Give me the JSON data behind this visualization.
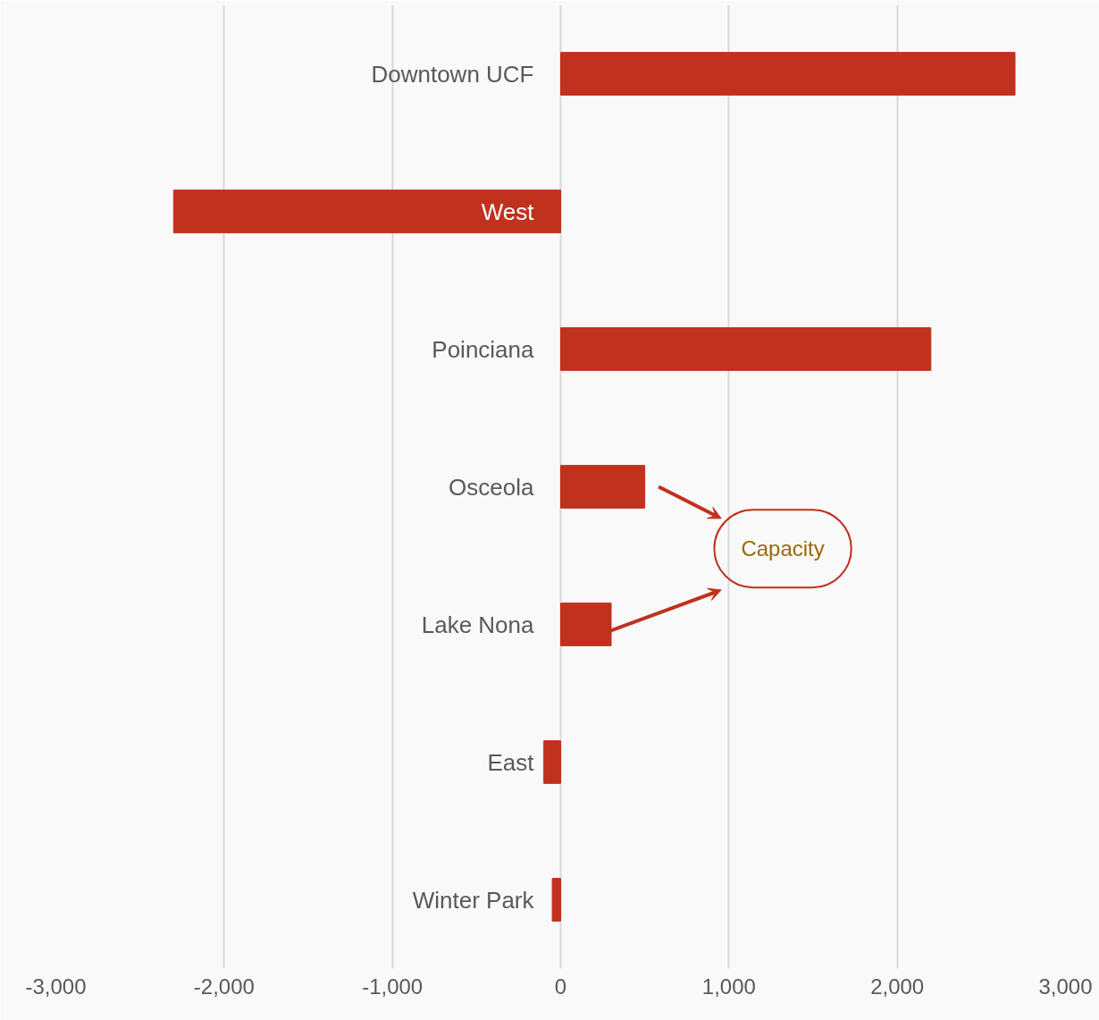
{
  "chart_data": {
    "type": "bar",
    "orientation": "horizontal",
    "categories": [
      "Downtown UCF",
      "West",
      "Poinciana",
      "Osceola",
      "Lake Nona",
      "East",
      "Winter Park"
    ],
    "values": [
      2700,
      -2300,
      2200,
      500,
      300,
      -100,
      -50
    ],
    "color": "#c0311e",
    "xlim": [
      -3000,
      3000
    ],
    "xticks": [
      {
        "value": -3000,
        "label": "-3,000"
      },
      {
        "value": -2000,
        "label": "-2,000"
      },
      {
        "value": -1000,
        "label": "-1,000"
      },
      0,
      {
        "value": 1000,
        "label": "1,000"
      },
      {
        "value": 2000,
        "label": "2,000"
      },
      {
        "value": 3000,
        "label": "3,000"
      }
    ],
    "grid": "x",
    "annotations": [
      "Capacity"
    ]
  }
}
